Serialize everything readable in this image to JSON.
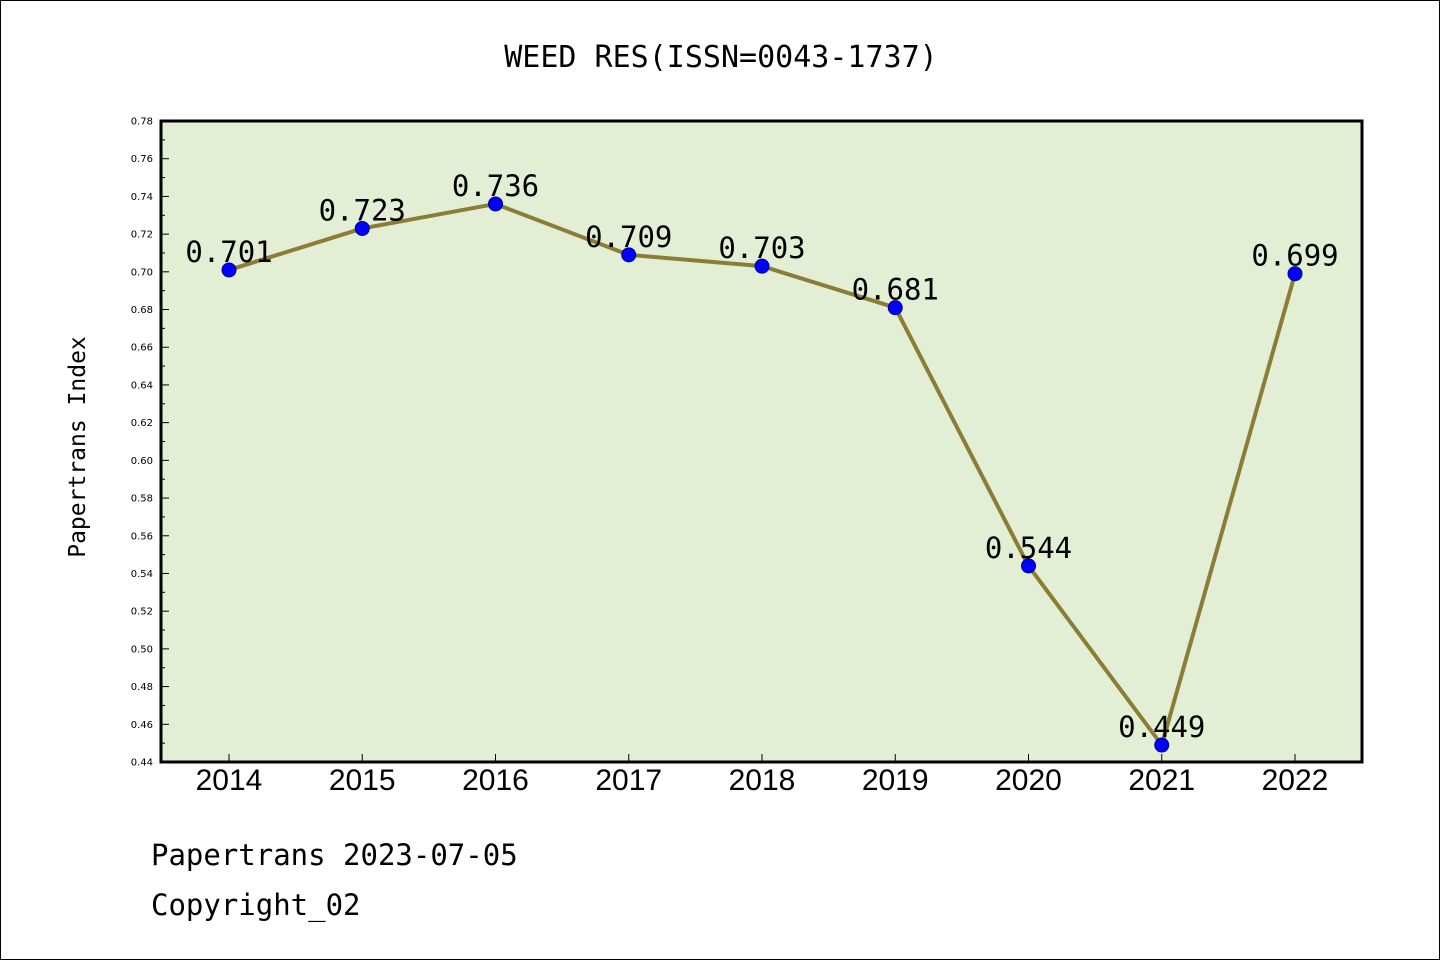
{
  "chart_data": {
    "type": "line",
    "title": "WEED RES(ISSN=0043-1737)",
    "xlabel": "",
    "ylabel": "Papertrans Index",
    "categories": [
      "2014",
      "2015",
      "2016",
      "2017",
      "2018",
      "2019",
      "2020",
      "2021",
      "2022"
    ],
    "series": [
      {
        "values": [
          0.701,
          0.723,
          0.736,
          0.709,
          0.703,
          0.681,
          0.544,
          0.449,
          0.699
        ],
        "labels": [
          "0.701",
          "0.723",
          "0.736",
          "0.709",
          "0.703",
          "0.681",
          "0.544",
          "0.449",
          "0.699"
        ],
        "line_color": "#8b7d35",
        "marker_color": "#0000ff"
      }
    ],
    "ylim": [
      0.44,
      0.78
    ],
    "yticks": [
      "0.44",
      "0.46",
      "0.48",
      "0.50",
      "0.52",
      "0.54",
      "0.56",
      "0.58",
      "0.60",
      "0.62",
      "0.64",
      "0.66",
      "0.68",
      "0.70",
      "0.72",
      "0.74",
      "0.76",
      "0.78"
    ],
    "grid": false,
    "legend": "none",
    "plot_background": "#e2efd4"
  },
  "footer": {
    "line1": "Papertrans 2023-07-05",
    "line2": "Copyright_02"
  }
}
